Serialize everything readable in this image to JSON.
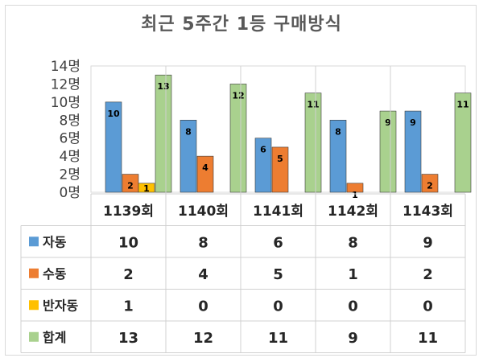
{
  "chart_data": {
    "type": "bar",
    "title": "최근 5주간 1등 구매방식",
    "categories": [
      "1139회",
      "1140회",
      "1141회",
      "1142회",
      "1143회"
    ],
    "yticks": [
      "0명",
      "2명",
      "4명",
      "6명",
      "8명",
      "10명",
      "12명",
      "14명"
    ],
    "ylim": [
      0,
      14
    ],
    "grid": false,
    "legend": "table-left",
    "series": [
      {
        "name": "자동",
        "color": "#5b9bd5",
        "values": [
          10,
          8,
          6,
          8,
          9
        ],
        "display": [
          "10",
          "8",
          "6",
          "8",
          "9"
        ]
      },
      {
        "name": "수동",
        "color": "#ed7d31",
        "values": [
          2,
          4,
          5,
          1,
          2
        ],
        "display": [
          "2",
          "4",
          "5",
          "1",
          "2"
        ]
      },
      {
        "name": "반자동",
        "color": "#ffc000",
        "values": [
          1,
          0,
          0,
          0,
          0
        ],
        "display": [
          "1",
          "0",
          "0",
          "0",
          "0"
        ]
      },
      {
        "name": "합계",
        "color": "#a9d18e",
        "values": [
          13,
          12,
          11,
          9,
          11
        ],
        "display": [
          "13",
          "12",
          "11",
          "9",
          "11"
        ]
      }
    ]
  }
}
